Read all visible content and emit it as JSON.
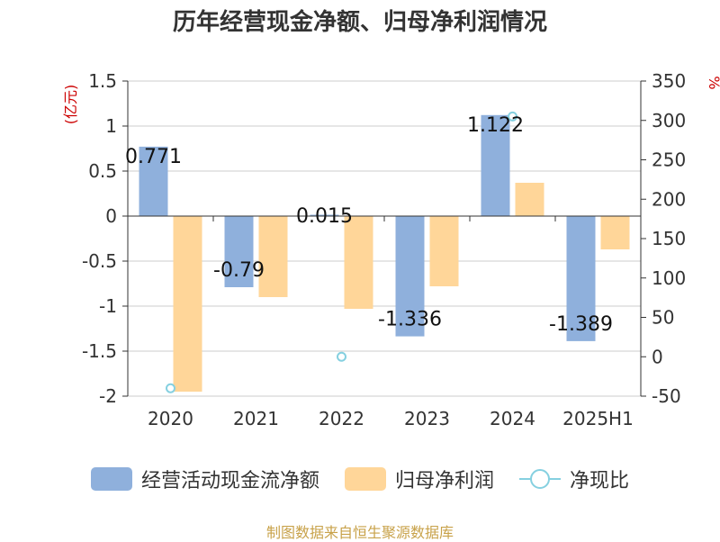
{
  "title": "历年经营现金净额、归母净利润情况",
  "source": "制图数据来自恒生聚源数据库",
  "colors": {
    "cash": "#8fb0dc",
    "profit": "#ffd699",
    "ratio": "#85d0e0",
    "unit": "#cc0000"
  },
  "chart_data": {
    "type": "bar",
    "categories": [
      "2020",
      "2021",
      "2022",
      "2023",
      "2024",
      "2025H1"
    ],
    "series": [
      {
        "name": "经营活动现金流净额",
        "type": "bar",
        "axis": "left",
        "values": [
          0.771,
          -0.79,
          0.015,
          -1.336,
          1.122,
          -1.389
        ],
        "labels": [
          "0.771",
          "-0.79",
          "0.015",
          "-1.336",
          "1.122",
          "-1.389"
        ]
      },
      {
        "name": "归母净利润",
        "type": "bar",
        "axis": "left",
        "values": [
          -1.95,
          -0.9,
          -1.03,
          -0.78,
          0.37,
          -0.37
        ]
      },
      {
        "name": "净现比",
        "type": "scatter",
        "axis": "right",
        "values": [
          -40,
          null,
          0,
          null,
          305,
          null
        ]
      }
    ],
    "y_left": {
      "label": "(亿元)",
      "ylim": [
        -2,
        1.5
      ],
      "ticks": [
        "1.5",
        "1",
        "0.5",
        "0",
        "-0.5",
        "-1",
        "-1.5",
        "-2"
      ]
    },
    "y_right": {
      "label": "%",
      "ylim": [
        -50,
        350
      ],
      "ticks": [
        "350",
        "300",
        "250",
        "200",
        "150",
        "100",
        "50",
        "0",
        "-50"
      ]
    },
    "grid": true,
    "legend_position": "bottom"
  }
}
